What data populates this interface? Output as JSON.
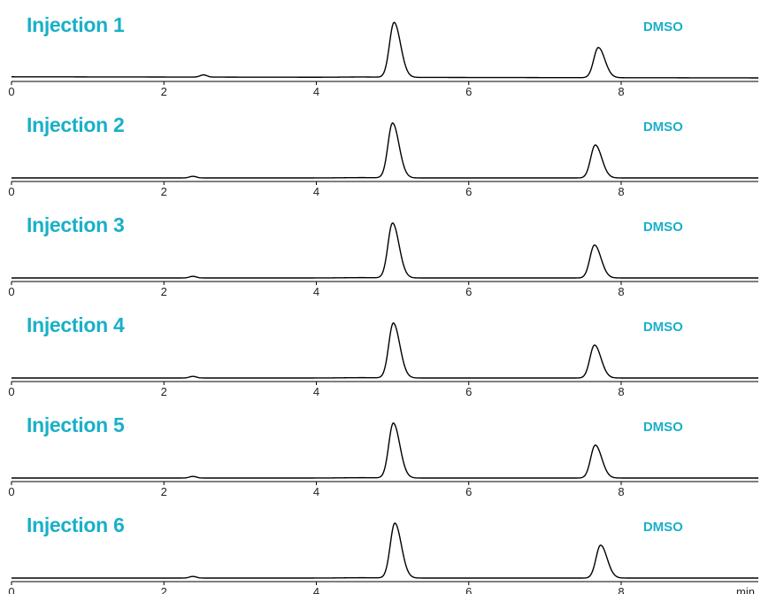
{
  "colors": {
    "label": "#19b0c7",
    "trace": "#000000",
    "axis": "#000000",
    "tick_text": "#222222"
  },
  "chart_data": [
    {
      "type": "line",
      "title": "Injection 1",
      "x_unit_label": "",
      "xlim": [
        0,
        9.8
      ],
      "xticks": [
        "0",
        "2",
        "4",
        "6",
        "8"
      ],
      "annotations": [
        {
          "text": "DMSO",
          "x": 8.55
        }
      ],
      "peaks": [
        {
          "rt": 2.52,
          "height": 0.04
        },
        {
          "rt": 5.02,
          "height": 1.0
        },
        {
          "rt": 7.7,
          "height": 0.55
        }
      ],
      "baseline": {
        "start": 0.02,
        "end": 0.0
      }
    },
    {
      "type": "line",
      "title": "Injection 2",
      "x_unit_label": "",
      "xlim": [
        0,
        9.8
      ],
      "xticks": [
        "0",
        "2",
        "4",
        "6",
        "8"
      ],
      "annotations": [
        {
          "text": "DMSO",
          "x": 8.55
        }
      ],
      "peaks": [
        {
          "rt": 2.38,
          "height": 0.03
        },
        {
          "rt": 5.0,
          "height": 1.0
        },
        {
          "rt": 7.66,
          "height": 0.6
        }
      ],
      "baseline": {
        "start": 0.0,
        "end": 0.0
      }
    },
    {
      "type": "line",
      "title": "Injection 3",
      "x_unit_label": "",
      "xlim": [
        0,
        9.8
      ],
      "xticks": [
        "0",
        "2",
        "4",
        "6",
        "8"
      ],
      "annotations": [
        {
          "text": "DMSO",
          "x": 8.55
        }
      ],
      "peaks": [
        {
          "rt": 2.38,
          "height": 0.03
        },
        {
          "rt": 5.0,
          "height": 1.0
        },
        {
          "rt": 7.65,
          "height": 0.6
        }
      ],
      "baseline": {
        "start": 0.0,
        "end": 0.0
      }
    },
    {
      "type": "line",
      "title": "Injection 4",
      "x_unit_label": "",
      "xlim": [
        0,
        9.8
      ],
      "xticks": [
        "0",
        "2",
        "4",
        "6",
        "8"
      ],
      "annotations": [
        {
          "text": "DMSO",
          "x": 8.55
        }
      ],
      "peaks": [
        {
          "rt": 2.38,
          "height": 0.03
        },
        {
          "rt": 5.01,
          "height": 1.0
        },
        {
          "rt": 7.65,
          "height": 0.6
        }
      ],
      "baseline": {
        "start": 0.0,
        "end": 0.0
      }
    },
    {
      "type": "line",
      "title": "Injection 5",
      "x_unit_label": "",
      "xlim": [
        0,
        9.8
      ],
      "xticks": [
        "0",
        "2",
        "4",
        "6",
        "8"
      ],
      "annotations": [
        {
          "text": "DMSO",
          "x": 8.55
        }
      ],
      "peaks": [
        {
          "rt": 2.38,
          "height": 0.03
        },
        {
          "rt": 5.01,
          "height": 1.0
        },
        {
          "rt": 7.66,
          "height": 0.6
        }
      ],
      "baseline": {
        "start": 0.0,
        "end": 0.0
      }
    },
    {
      "type": "line",
      "title": "Injection 6",
      "x_unit_label": "min",
      "xlim": [
        0,
        9.8
      ],
      "xticks": [
        "0",
        "2",
        "4",
        "6",
        "8"
      ],
      "annotations": [
        {
          "text": "DMSO",
          "x": 8.55
        }
      ],
      "peaks": [
        {
          "rt": 2.38,
          "height": 0.03
        },
        {
          "rt": 5.03,
          "height": 1.0
        },
        {
          "rt": 7.73,
          "height": 0.6
        }
      ],
      "baseline": {
        "start": 0.0,
        "end": 0.0
      }
    }
  ]
}
